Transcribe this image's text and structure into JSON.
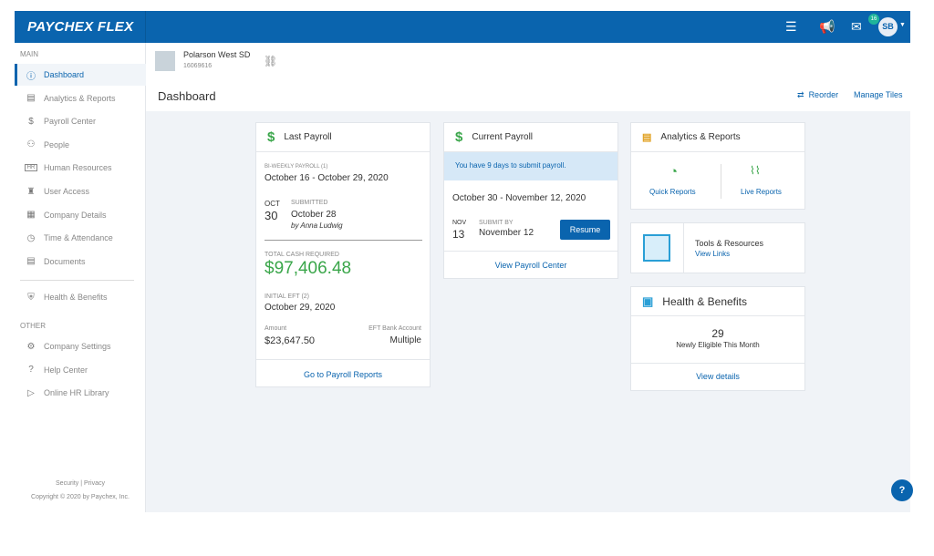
{
  "header": {
    "logo": "PAYCHEX FLEX",
    "icons": [
      "directory-icon",
      "megaphone-icon",
      "inbox-icon"
    ],
    "inbox_count": "16",
    "avatar": "SB"
  },
  "sidebar": {
    "main_label": "MAIN",
    "other_label": "OTHER",
    "items": [
      {
        "label": "Dashboard",
        "icon": "dashboard-icon"
      },
      {
        "label": "Analytics & Reports",
        "icon": "reports-icon"
      },
      {
        "label": "Payroll Center",
        "icon": "dollar-icon"
      },
      {
        "label": "People",
        "icon": "people-icon"
      },
      {
        "label": "Human Resources",
        "icon": "hr-icon"
      },
      {
        "label": "User Access",
        "icon": "user-access-icon"
      },
      {
        "label": "Company Details",
        "icon": "building-icon"
      },
      {
        "label": "Time & Attendance",
        "icon": "clock-icon"
      },
      {
        "label": "Documents",
        "icon": "document-icon"
      },
      {
        "label": "Health & Benefits",
        "icon": "shield-icon"
      }
    ],
    "other_items": [
      {
        "label": "Company Settings",
        "icon": "gear-icon"
      },
      {
        "label": "Help Center",
        "icon": "help-icon"
      },
      {
        "label": "Online HR Library",
        "icon": "library-icon"
      }
    ],
    "footer_links": "Security | Privacy",
    "copyright": "Copyright © 2020 by Paychex, Inc."
  },
  "company": {
    "name": "Polarson West SD",
    "id": "16069616"
  },
  "page": {
    "title": "Dashboard",
    "reorder": "Reorder",
    "manage": "Manage Tiles"
  },
  "last_payroll": {
    "title": "Last Payroll",
    "type": "BI-WEEKLY PAYROLL (1)",
    "period": "October 16 - October 29, 2020",
    "month": "OCT",
    "day": "30",
    "status": "SUBMITTED",
    "submitted_date": "October 28",
    "by": "by  Anna Ludwig",
    "cash_label": "TOTAL CASH REQUIRED",
    "cash": "$97,406.48",
    "eft_label": "INITIAL EFT (2)",
    "eft_date": "October 29, 2020",
    "amount_label": "Amount",
    "amount": "$23,647.50",
    "bank_label": "EFT Bank Account",
    "bank": "Multiple",
    "link": "Go to Payroll Reports"
  },
  "current_payroll": {
    "title": "Current Payroll",
    "notice": "You have 9 days to submit payroll.",
    "period": "October 30 - November 12, 2020",
    "month": "NOV",
    "day": "13",
    "submit_label": "SUBMIT BY",
    "submit_date": "November 12",
    "resume": "Resume",
    "link": "View Payroll Center"
  },
  "analytics": {
    "title": "Analytics & Reports",
    "quick": "Quick Reports",
    "live": "Live Reports"
  },
  "tools": {
    "title": "Tools & Resources",
    "link": "View Links"
  },
  "health": {
    "title": "Health & Benefits",
    "count": "29",
    "desc": "Newly Eligible This Month",
    "link": "View details"
  },
  "help": "?",
  "colors": {
    "brand": "#0a64ae",
    "green": "#3aa64a",
    "notice": "#d6e8f7"
  }
}
